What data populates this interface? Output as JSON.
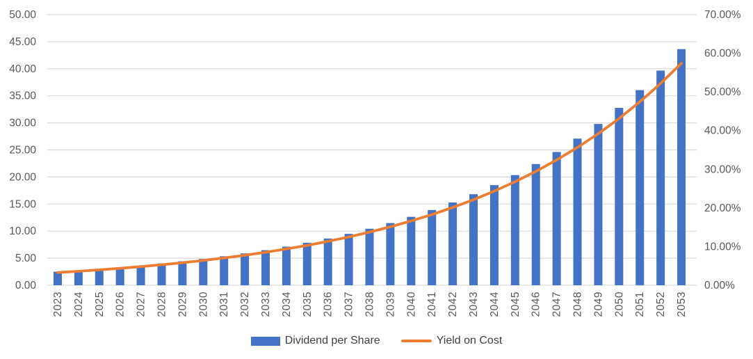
{
  "chart_data": {
    "type": "bar",
    "subtype": "combo-bar-line-dual-axis",
    "title": "",
    "xlabel": "",
    "ylabel_left": "",
    "ylabel_right": "",
    "grid": "horizontal",
    "legend_position": "bottom",
    "categories": [
      "2023",
      "2024",
      "2025",
      "2026",
      "2027",
      "2028",
      "2029",
      "2030",
      "2031",
      "2032",
      "2033",
      "2034",
      "2035",
      "2036",
      "2037",
      "2038",
      "2039",
      "2040",
      "2041",
      "2042",
      "2043",
      "2044",
      "2045",
      "2046",
      "2047",
      "2048",
      "2049",
      "2050",
      "2051",
      "2052",
      "2053"
    ],
    "series": [
      {
        "name": "Dividend per Share",
        "type": "bar",
        "axis": "left",
        "color": "#4472C4",
        "values": [
          2.5,
          2.75,
          3.03,
          3.33,
          3.66,
          4.03,
          4.43,
          4.87,
          5.36,
          5.89,
          6.48,
          7.13,
          7.85,
          8.63,
          9.49,
          10.44,
          11.49,
          12.64,
          13.9,
          15.29,
          16.82,
          18.5,
          20.35,
          22.39,
          24.62,
          27.09,
          29.8,
          32.77,
          36.05,
          39.66,
          43.62
        ]
      },
      {
        "name": "Yield on Cost",
        "type": "line",
        "axis": "right",
        "color": "#ED7D31",
        "values_percent": [
          3.29,
          3.62,
          3.98,
          4.38,
          4.82,
          5.3,
          5.83,
          6.41,
          7.05,
          7.76,
          8.53,
          9.39,
          10.32,
          11.36,
          12.49,
          13.74,
          15.11,
          16.63,
          18.29,
          20.12,
          22.13,
          24.34,
          26.78,
          29.45,
          32.4,
          35.64,
          39.2,
          43.12,
          47.44,
          52.18,
          57.4
        ]
      }
    ],
    "left_axis": {
      "min": 0,
      "max": 50,
      "tick_step": 5,
      "tick_labels": [
        "0.00",
        "5.00",
        "10.00",
        "15.00",
        "20.00",
        "25.00",
        "30.00",
        "35.00",
        "40.00",
        "45.00",
        "50.00"
      ]
    },
    "right_axis": {
      "min": 0,
      "max": 70,
      "tick_step": 10,
      "tick_labels": [
        "0.00%",
        "10.00%",
        "20.00%",
        "30.00%",
        "40.00%",
        "50.00%",
        "60.00%",
        "70.00%"
      ]
    }
  },
  "legend": {
    "items": [
      {
        "label": "Dividend per Share",
        "swatch": "bar",
        "color": "#4472C4"
      },
      {
        "label": "Yield on Cost",
        "swatch": "line",
        "color": "#ED7D31"
      }
    ]
  },
  "colors": {
    "background": "#FFFFFF",
    "gridline": "#D9D9D9",
    "axis_text": "#595959",
    "legend_text": "#404040"
  }
}
